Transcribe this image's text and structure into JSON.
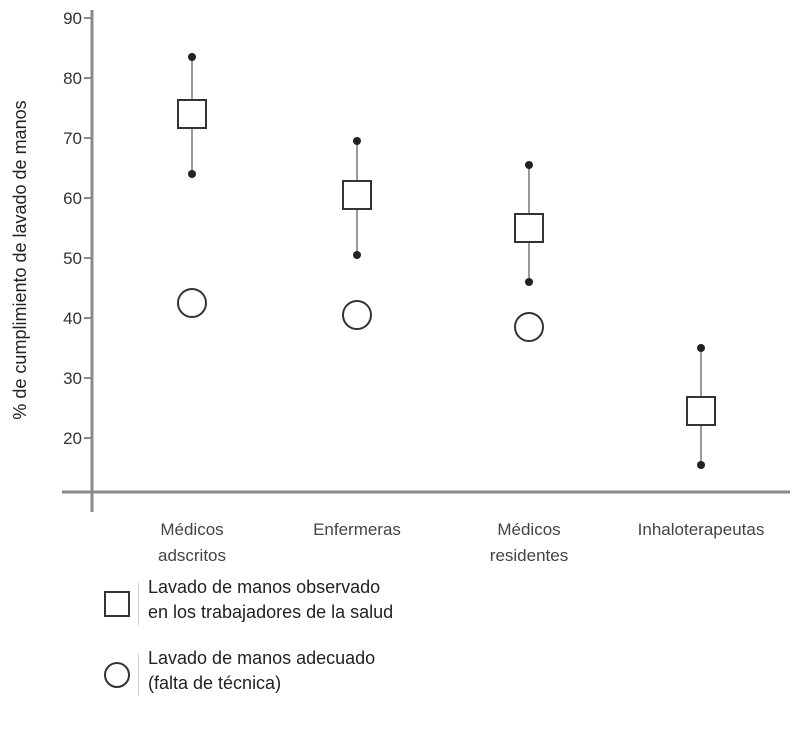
{
  "chart_data": {
    "type": "scatter",
    "title": "",
    "xlabel": "",
    "ylabel": "% de cumplimiento de lavado de manos",
    "ylim": [
      10,
      90
    ],
    "yticks": [
      20,
      30,
      40,
      50,
      60,
      70,
      80,
      90
    ],
    "grid": false,
    "categories": [
      [
        "Médicos",
        "adscritos"
      ],
      [
        "Enfermeras"
      ],
      [
        "Médicos",
        "residentes"
      ],
      [
        "Inhaloterapeutas"
      ]
    ],
    "series": [
      {
        "name": "Lavado de manos observado en los trabajadores de la salud",
        "marker": "square",
        "values": [
          74,
          60.5,
          55,
          24.5
        ],
        "error_low": [
          64,
          50.5,
          46,
          15.5
        ],
        "error_high": [
          83.5,
          69.5,
          65.5,
          35
        ]
      },
      {
        "name": "Lavado de manos adecuado (falta de técnica)",
        "marker": "circle",
        "values": [
          42.5,
          40.5,
          38.5,
          null
        ]
      }
    ]
  },
  "legend": {
    "items": [
      {
        "symbol": "square-icon",
        "lines": [
          "Lavado de manos observado",
          "en los trabajadores de la salud"
        ]
      },
      {
        "symbol": "circle-icon",
        "lines": [
          "Lavado de manos adecuado",
          "(falta de técnica)"
        ]
      }
    ]
  },
  "colors": {
    "axis": "#8a8a8a",
    "marker_stroke": "#333333",
    "marker_fill": "#ffffff",
    "whisker": "#777777",
    "dot": "#222222"
  }
}
